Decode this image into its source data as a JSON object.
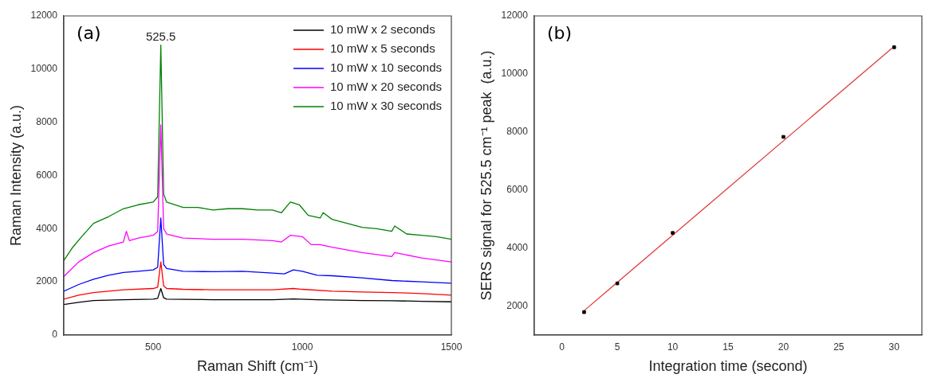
{
  "chart_data": [
    {
      "type": "line",
      "xlabel": "Raman Shift (cm⁻¹)",
      "ylabel": "Raman Intensity (a.u.)",
      "xlim": [
        200,
        1500
      ],
      "xticks": [
        500,
        1000,
        1500
      ],
      "ylim": [
        0,
        12000
      ],
      "yticks": [
        0,
        2000,
        4000,
        6000,
        8000,
        10000,
        12000
      ],
      "grid": false,
      "legend": "top right",
      "marker": "none",
      "line_style": "solid",
      "annotations": [
        "(a)",
        {
          "text": "525.5",
          "x": 525.5,
          "y": 10900
        }
      ],
      "series": [
        {
          "name": "10 mW x 2 seconds",
          "color": "#000000",
          "x": [
            200,
            250,
            300,
            400,
            500,
            515,
            525.5,
            535,
            545,
            600,
            700,
            800,
            900,
            970,
            1050,
            1200,
            1300,
            1400,
            1500
          ],
          "values": [
            1150,
            1230,
            1300,
            1330,
            1350,
            1380,
            1750,
            1400,
            1350,
            1340,
            1330,
            1330,
            1330,
            1360,
            1330,
            1300,
            1290,
            1270,
            1250
          ]
        },
        {
          "name": "10 mW x 5 seconds",
          "color": "#ff0000",
          "x": [
            200,
            250,
            300,
            400,
            500,
            515,
            525.5,
            535,
            545,
            600,
            700,
            800,
            900,
            970,
            1000,
            1100,
            1200,
            1300,
            1400,
            1500
          ],
          "values": [
            1350,
            1500,
            1600,
            1700,
            1750,
            1800,
            2750,
            1850,
            1750,
            1720,
            1700,
            1700,
            1700,
            1750,
            1720,
            1650,
            1620,
            1600,
            1560,
            1500
          ]
        },
        {
          "name": "10 mW x 10 seconds",
          "color": "#0000ff",
          "x": [
            200,
            250,
            300,
            350,
            400,
            450,
            500,
            515,
            525.5,
            535,
            545,
            600,
            700,
            800,
            900,
            940,
            970,
            1000,
            1050,
            1100,
            1200,
            1300,
            1400,
            1500
          ],
          "values": [
            1650,
            1900,
            2100,
            2250,
            2350,
            2400,
            2450,
            2550,
            4400,
            2650,
            2500,
            2400,
            2380,
            2400,
            2330,
            2300,
            2450,
            2400,
            2250,
            2230,
            2150,
            2050,
            2000,
            1950
          ]
        },
        {
          "name": "10 mW x 20 seconds",
          "color": "#ff00ff",
          "x": [
            200,
            250,
            300,
            350,
            400,
            410,
            420,
            450,
            500,
            515,
            525.5,
            535,
            545,
            600,
            700,
            800,
            900,
            930,
            960,
            1000,
            1030,
            1060,
            1100,
            1200,
            1300,
            1310,
            1400,
            1500
          ],
          "values": [
            2200,
            2750,
            3100,
            3350,
            3500,
            3900,
            3550,
            3650,
            3750,
            3900,
            7900,
            4000,
            3800,
            3650,
            3600,
            3600,
            3550,
            3500,
            3750,
            3700,
            3400,
            3400,
            3300,
            3100,
            2950,
            3100,
            2900,
            2750
          ]
        },
        {
          "name": "10 mW x 30 seconds",
          "color": "#008000",
          "x": [
            200,
            230,
            260,
            300,
            330,
            350,
            400,
            450,
            500,
            515,
            525.5,
            535,
            545,
            600,
            650,
            700,
            750,
            800,
            850,
            900,
            930,
            960,
            990,
            1020,
            1060,
            1070,
            1100,
            1150,
            1200,
            1250,
            1300,
            1310,
            1350,
            1400,
            1450,
            1500
          ],
          "values": [
            2800,
            3300,
            3700,
            4200,
            4350,
            4450,
            4750,
            4900,
            5000,
            5200,
            10900,
            5300,
            5000,
            4800,
            4800,
            4700,
            4750,
            4750,
            4700,
            4700,
            4600,
            5000,
            4900,
            4500,
            4400,
            4600,
            4350,
            4200,
            4050,
            4000,
            3900,
            4100,
            3800,
            3750,
            3700,
            3600
          ]
        }
      ]
    },
    {
      "type": "scatter",
      "xlabel": "Integration time (second)",
      "ylabel": "SERS signal for 525.5 cm⁻¹ peak  (a.u.)",
      "xlim": [
        -2.5,
        32.5
      ],
      "xticks": [
        0,
        5,
        10,
        15,
        20,
        25,
        30
      ],
      "ylim": [
        1000,
        12000
      ],
      "yticks": [
        2000,
        4000,
        6000,
        8000,
        10000,
        12000
      ],
      "grid": false,
      "marker": "square",
      "annotations": [
        "(b)"
      ],
      "series": [
        {
          "color": "#000000",
          "x": [
            2,
            5,
            10,
            20,
            30
          ],
          "values": [
            1790,
            2780,
            4520,
            7830,
            10920
          ]
        },
        {
          "type": "line",
          "marker": "none",
          "color": "#e03c3c",
          "x": [
            2,
            30
          ],
          "values": [
            1840,
            10950
          ]
        }
      ]
    }
  ]
}
